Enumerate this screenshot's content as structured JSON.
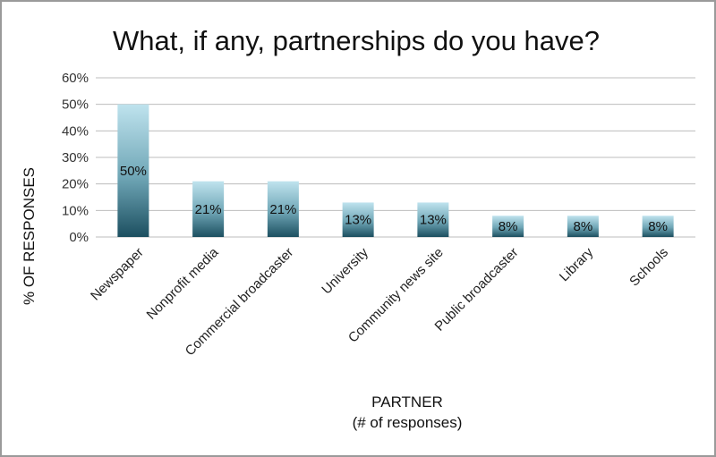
{
  "chart_data": {
    "type": "bar",
    "title": "What, if any, partnerships do you have?",
    "categories": [
      "Newspaper",
      "Nonprofit media",
      "Commercial broadcaster",
      "University",
      "Community news site",
      "Public broadcaster",
      "Library",
      "Schools"
    ],
    "values": [
      50,
      21,
      21,
      13,
      13,
      8,
      8,
      8
    ],
    "value_labels": [
      "50%",
      "21%",
      "21%",
      "13%",
      "13%",
      "8%",
      "8%",
      "8%"
    ],
    "xlabel": "PARTNER",
    "xlabel_sub": "(# of responses)",
    "ylabel": "% OF RESPONSES",
    "ylim": [
      0,
      60
    ],
    "yticks": [
      0,
      10,
      20,
      30,
      40,
      50,
      60
    ],
    "ytick_labels": [
      "0%",
      "10%",
      "20%",
      "30%",
      "40%",
      "50%",
      "60%"
    ],
    "grid": true,
    "legend": "none",
    "colors": {
      "bar_top": "#bfe3ee",
      "bar_bottom": "#1c4f60",
      "grid": "#bdbdbd"
    }
  }
}
